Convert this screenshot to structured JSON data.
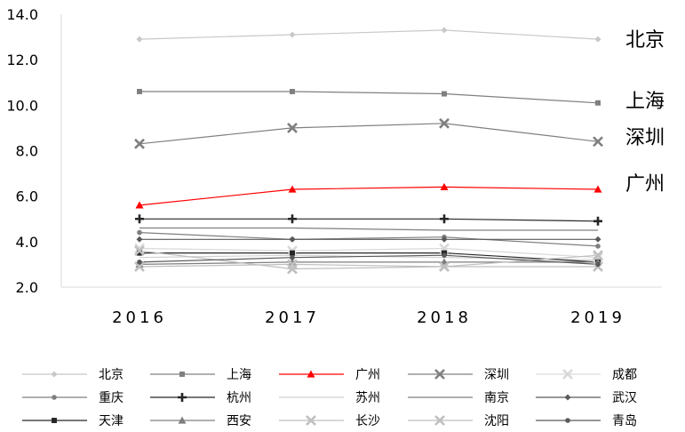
{
  "chart_data": {
    "type": "line",
    "x": [
      "2016",
      "2017",
      "2018",
      "2019"
    ],
    "ylim": [
      2.0,
      14.0
    ],
    "yticks": [
      "2.0",
      "4.0",
      "6.0",
      "8.0",
      "10.0",
      "12.0",
      "14.0"
    ],
    "grid": false,
    "legend_position": "bottom",
    "accent_color": "#ff0000",
    "series": [
      {
        "name": "北京",
        "values": [
          12.9,
          13.1,
          13.3,
          12.9
        ],
        "color": "#c8c8c8",
        "marker": "diamond"
      },
      {
        "name": "上海",
        "values": [
          10.6,
          10.6,
          10.5,
          10.1
        ],
        "color": "#7f7f7f",
        "marker": "square"
      },
      {
        "name": "广州",
        "values": [
          5.6,
          6.3,
          6.4,
          6.3
        ],
        "color": "#ff0000",
        "marker": "triangle"
      },
      {
        "name": "深圳",
        "values": [
          8.3,
          9.0,
          9.2,
          8.4
        ],
        "color": "#7f7f7f",
        "marker": "x"
      },
      {
        "name": "成都",
        "values": [
          3.7,
          3.6,
          3.7,
          3.3
        ],
        "color": "#d9d9d9",
        "marker": "x"
      },
      {
        "name": "重庆",
        "values": [
          4.4,
          4.1,
          4.2,
          3.8
        ],
        "color": "#7f7f7f",
        "marker": "circle"
      },
      {
        "name": "杭州",
        "values": [
          5.0,
          5.0,
          5.0,
          4.9
        ],
        "color": "#262626",
        "marker": "plus"
      },
      {
        "name": "苏州",
        "values": [
          3.3,
          3.4,
          3.3,
          3.2
        ],
        "color": "#d0d0d0",
        "marker": "none"
      },
      {
        "name": "南京",
        "values": [
          4.6,
          4.6,
          4.5,
          4.5
        ],
        "color": "#7f7f7f",
        "marker": "none"
      },
      {
        "name": "武汉",
        "values": [
          4.1,
          4.1,
          4.1,
          4.1
        ],
        "color": "#595959",
        "marker": "diamond"
      },
      {
        "name": "天津",
        "values": [
          3.5,
          3.5,
          3.5,
          3.1
        ],
        "color": "#262626",
        "marker": "square"
      },
      {
        "name": "西安",
        "values": [
          3.0,
          3.1,
          3.1,
          3.1
        ],
        "color": "#7f7f7f",
        "marker": "triangle"
      },
      {
        "name": "长沙",
        "values": [
          3.6,
          2.8,
          2.9,
          2.9
        ],
        "color": "#bfbfbf",
        "marker": "x"
      },
      {
        "name": "沈阳",
        "values": [
          2.9,
          3.0,
          2.9,
          3.4
        ],
        "color": "#bfbfbf",
        "marker": "x"
      },
      {
        "name": "青岛",
        "values": [
          3.1,
          3.3,
          3.4,
          3.0
        ],
        "color": "#595959",
        "marker": "circle"
      }
    ],
    "end_labels": [
      "北京",
      "上海",
      "深圳",
      "广州"
    ]
  }
}
